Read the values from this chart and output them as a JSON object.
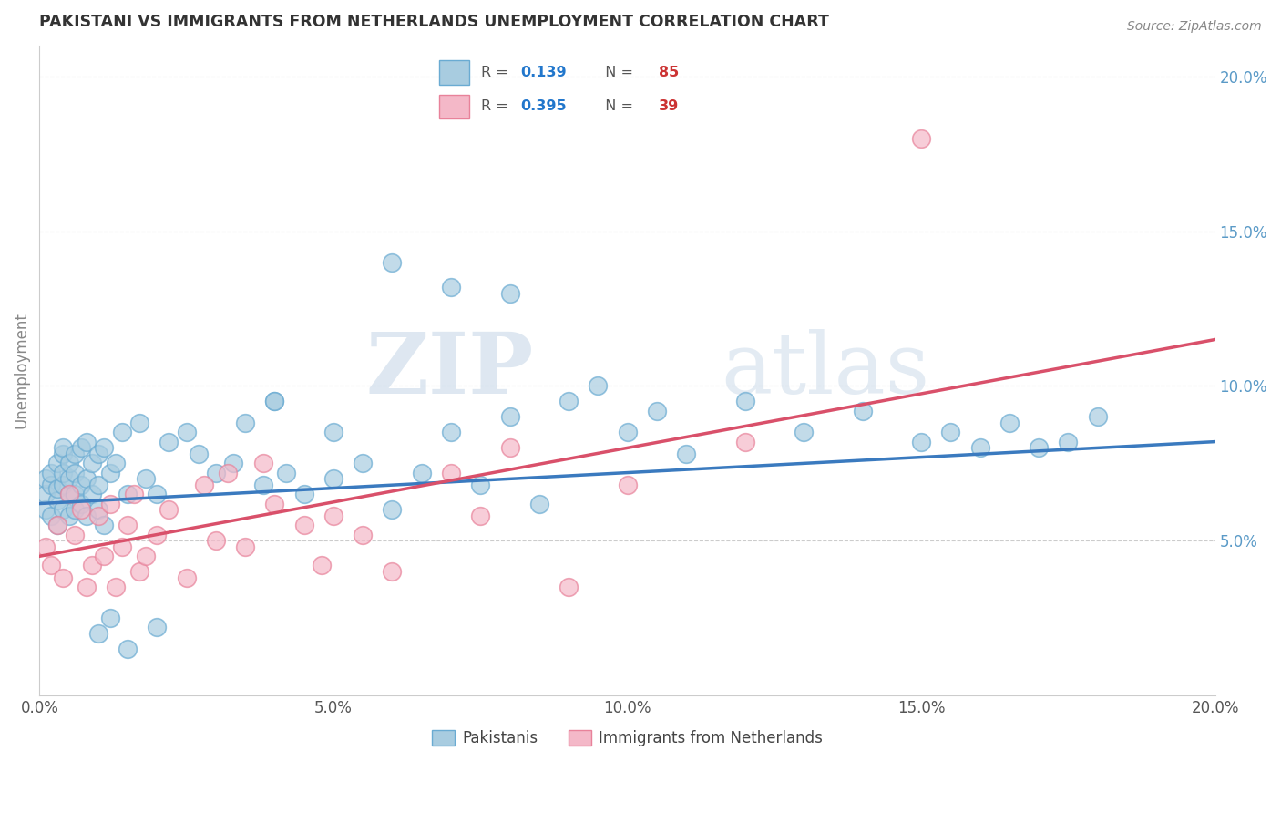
{
  "title": "PAKISTANI VS IMMIGRANTS FROM NETHERLANDS UNEMPLOYMENT CORRELATION CHART",
  "source": "Source: ZipAtlas.com",
  "ylabel": "Unemployment",
  "xlim": [
    0.0,
    0.2
  ],
  "ylim": [
    0.0,
    0.21
  ],
  "yticks": [
    0.05,
    0.1,
    0.15,
    0.2
  ],
  "yticklabels": [
    "5.0%",
    "10.0%",
    "15.0%",
    "20.0%"
  ],
  "xticks": [
    0.0,
    0.05,
    0.1,
    0.15,
    0.2
  ],
  "xticklabels": [
    "0.0%",
    "5.0%",
    "10.0%",
    "15.0%",
    "20.0%"
  ],
  "watermark_zip": "ZIP",
  "watermark_atlas": "atlas",
  "pakistani_color": "#a8cce0",
  "pakistani_edge_color": "#6aabd2",
  "netherlands_color": "#f4b8c8",
  "netherlands_edge_color": "#e8829a",
  "pakistani_line_color": "#3a7abf",
  "netherlands_line_color": "#d9506a",
  "pakistani_x": [
    0.001,
    0.001,
    0.001,
    0.002,
    0.002,
    0.002,
    0.003,
    0.003,
    0.003,
    0.003,
    0.004,
    0.004,
    0.004,
    0.004,
    0.004,
    0.005,
    0.005,
    0.005,
    0.005,
    0.006,
    0.006,
    0.006,
    0.006,
    0.007,
    0.007,
    0.007,
    0.008,
    0.008,
    0.008,
    0.009,
    0.009,
    0.01,
    0.01,
    0.01,
    0.011,
    0.011,
    0.012,
    0.013,
    0.014,
    0.015,
    0.017,
    0.018,
    0.02,
    0.022,
    0.025,
    0.027,
    0.03,
    0.033,
    0.035,
    0.038,
    0.04,
    0.042,
    0.045,
    0.05,
    0.055,
    0.06,
    0.065,
    0.07,
    0.075,
    0.08,
    0.085,
    0.09,
    0.095,
    0.1,
    0.105,
    0.11,
    0.12,
    0.13,
    0.14,
    0.15,
    0.155,
    0.16,
    0.165,
    0.17,
    0.175,
    0.18,
    0.06,
    0.07,
    0.08,
    0.04,
    0.05,
    0.01,
    0.012,
    0.015,
    0.02
  ],
  "pakistani_y": [
    0.06,
    0.065,
    0.07,
    0.058,
    0.068,
    0.072,
    0.055,
    0.063,
    0.067,
    0.075,
    0.06,
    0.068,
    0.072,
    0.078,
    0.08,
    0.058,
    0.065,
    0.07,
    0.075,
    0.06,
    0.065,
    0.072,
    0.078,
    0.062,
    0.068,
    0.08,
    0.058,
    0.07,
    0.082,
    0.065,
    0.075,
    0.06,
    0.068,
    0.078,
    0.055,
    0.08,
    0.072,
    0.075,
    0.085,
    0.065,
    0.088,
    0.07,
    0.065,
    0.082,
    0.085,
    0.078,
    0.072,
    0.075,
    0.088,
    0.068,
    0.095,
    0.072,
    0.065,
    0.07,
    0.075,
    0.06,
    0.072,
    0.085,
    0.068,
    0.09,
    0.062,
    0.095,
    0.1,
    0.085,
    0.092,
    0.078,
    0.095,
    0.085,
    0.092,
    0.082,
    0.085,
    0.08,
    0.088,
    0.08,
    0.082,
    0.09,
    0.14,
    0.132,
    0.13,
    0.095,
    0.085,
    0.02,
    0.025,
    0.015,
    0.022
  ],
  "netherlands_x": [
    0.001,
    0.002,
    0.003,
    0.004,
    0.005,
    0.006,
    0.007,
    0.008,
    0.009,
    0.01,
    0.011,
    0.012,
    0.013,
    0.014,
    0.015,
    0.016,
    0.017,
    0.018,
    0.02,
    0.022,
    0.025,
    0.028,
    0.03,
    0.032,
    0.035,
    0.038,
    0.04,
    0.045,
    0.048,
    0.05,
    0.055,
    0.06,
    0.07,
    0.075,
    0.08,
    0.09,
    0.1,
    0.12,
    0.15
  ],
  "netherlands_y": [
    0.048,
    0.042,
    0.055,
    0.038,
    0.065,
    0.052,
    0.06,
    0.035,
    0.042,
    0.058,
    0.045,
    0.062,
    0.035,
    0.048,
    0.055,
    0.065,
    0.04,
    0.045,
    0.052,
    0.06,
    0.038,
    0.068,
    0.05,
    0.072,
    0.048,
    0.075,
    0.062,
    0.055,
    0.042,
    0.058,
    0.052,
    0.04,
    0.072,
    0.058,
    0.08,
    0.035,
    0.068,
    0.082,
    0.18
  ]
}
